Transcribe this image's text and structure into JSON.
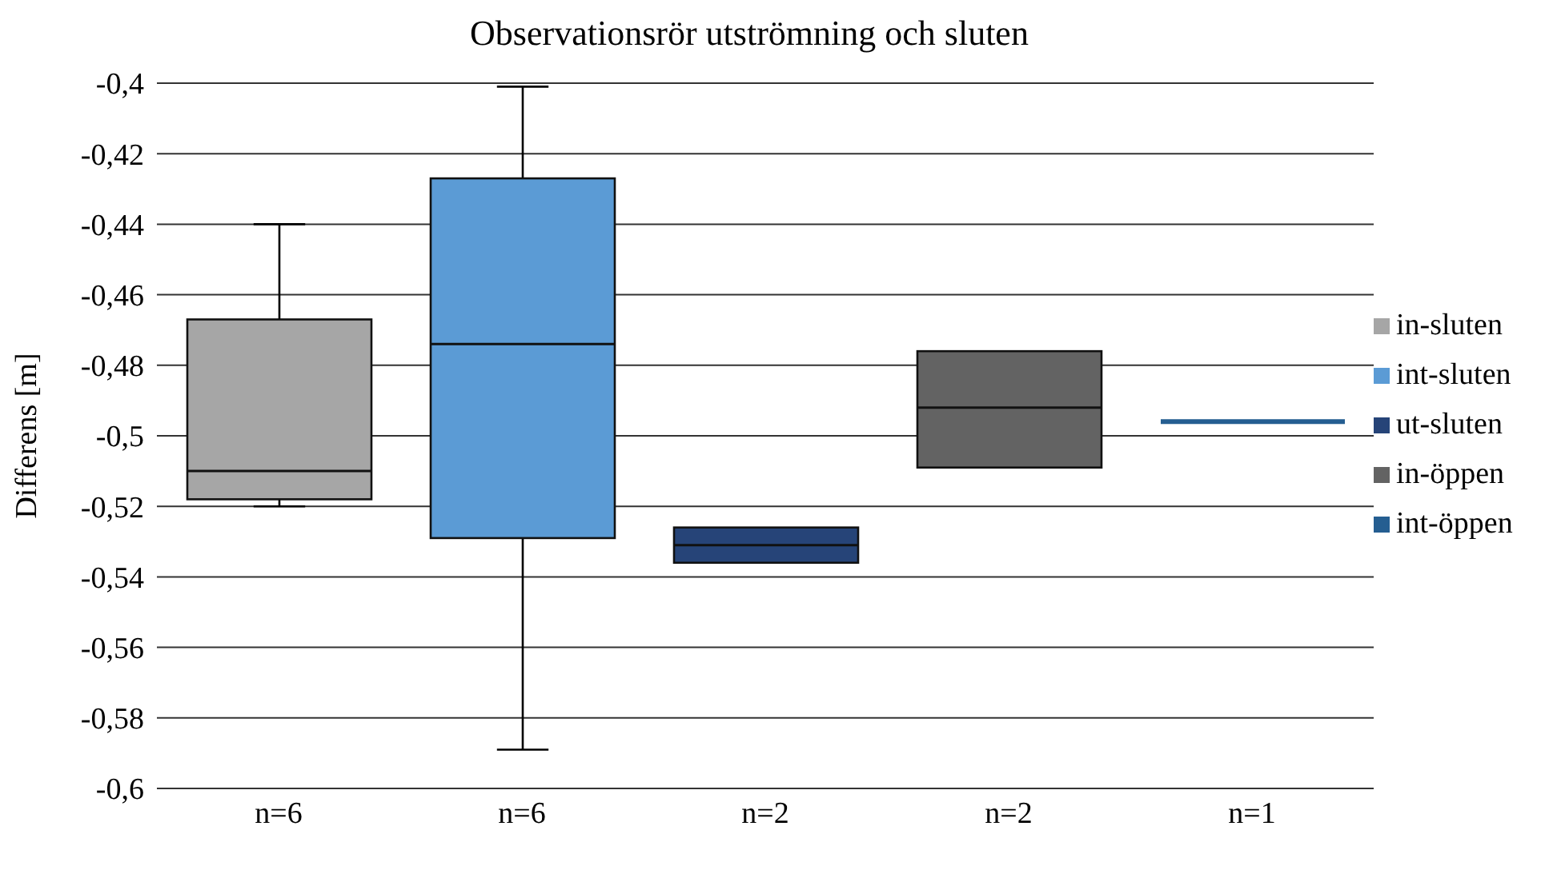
{
  "chart_data": {
    "type": "box",
    "title": "Observationsrör utströmning och sluten",
    "ylabel": "Differens [m]",
    "categories": [
      "n=6",
      "n=6",
      "n=2",
      "n=2",
      "n=1"
    ],
    "series": [
      {
        "name": "in-sluten",
        "color": "#a6a6a6",
        "boxes": [
          {
            "low": -0.52,
            "q1": -0.518,
            "median": -0.51,
            "q3": -0.467,
            "high": -0.44
          },
          null,
          null,
          null,
          null
        ]
      },
      {
        "name": "int-sluten",
        "color": "#5b9bd5",
        "boxes": [
          null,
          {
            "low": -0.589,
            "q1": -0.529,
            "median": -0.474,
            "q3": -0.427,
            "high": -0.401
          },
          null,
          null,
          null
        ]
      },
      {
        "name": "ut-sluten",
        "color": "#264478",
        "boxes": [
          null,
          null,
          {
            "low": -0.536,
            "q1": -0.536,
            "median": -0.531,
            "q3": -0.526,
            "high": -0.526
          },
          null,
          null
        ]
      },
      {
        "name": "in-öppen",
        "color": "#636363",
        "boxes": [
          null,
          null,
          null,
          {
            "low": -0.509,
            "q1": -0.509,
            "median": -0.492,
            "q3": -0.476,
            "high": -0.476
          },
          null
        ]
      },
      {
        "name": "int-öppen",
        "color": "#255e91",
        "boxes": [
          null,
          null,
          null,
          null,
          {
            "low": -0.496,
            "q1": -0.496,
            "median": -0.496,
            "q3": -0.496,
            "high": -0.496
          }
        ]
      }
    ],
    "ylim": [
      -0.6,
      -0.4
    ],
    "yticks": [
      {
        "value": -0.6,
        "label": "-0,6"
      },
      {
        "value": -0.58,
        "label": "-0,58"
      },
      {
        "value": -0.56,
        "label": "-0,56"
      },
      {
        "value": -0.54,
        "label": "-0,54"
      },
      {
        "value": -0.52,
        "label": "-0,52"
      },
      {
        "value": -0.5,
        "label": "-0,5"
      },
      {
        "value": -0.48,
        "label": "-0,48"
      },
      {
        "value": -0.46,
        "label": "-0,46"
      },
      {
        "value": -0.44,
        "label": "-0,44"
      },
      {
        "value": -0.42,
        "label": "-0,42"
      },
      {
        "value": -0.4,
        "label": "-0,4"
      }
    ],
    "grid": "y",
    "legend": "right"
  }
}
